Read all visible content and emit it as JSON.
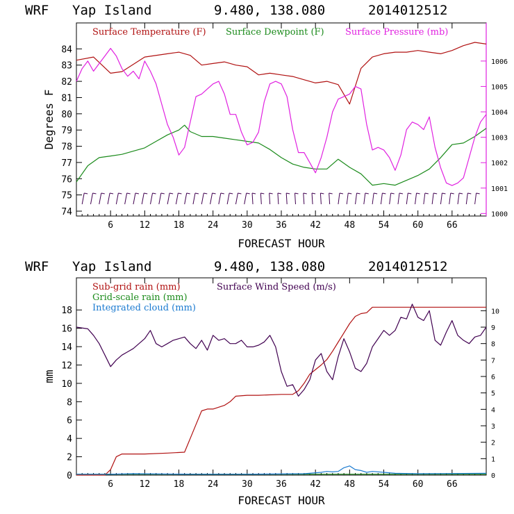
{
  "chart_data": [
    {
      "type": "line",
      "title": {
        "model": "WRF",
        "location": "Yap Island",
        "coords": "9.480, 138.080",
        "init": "2014012512"
      },
      "xlabel": "FORECAST HOUR",
      "ylabel": "Degrees F",
      "xlim": [
        0,
        72
      ],
      "ylim": [
        73.7,
        85.6
      ],
      "y2lim": [
        999.9,
        1007.5
      ],
      "xticks": [
        6,
        12,
        18,
        24,
        30,
        36,
        42,
        48,
        54,
        60,
        66
      ],
      "yticks": [
        74,
        75,
        76,
        77,
        78,
        79,
        80,
        81,
        82,
        83,
        84
      ],
      "y2ticks": [
        1000,
        1001,
        1002,
        1003,
        1004,
        1005,
        1006
      ],
      "series": [
        {
          "name": "Surface Temperature (F)",
          "color": "#b01010",
          "axis": "left",
          "x": [
            0,
            3,
            6,
            8,
            12,
            16,
            18,
            20,
            22,
            24,
            26,
            28,
            30,
            32,
            34,
            36,
            38,
            40,
            42,
            44,
            46,
            48,
            50,
            52,
            54,
            56,
            58,
            60,
            62,
            64,
            66,
            68,
            70,
            72
          ],
          "y": [
            83.3,
            83.5,
            82.5,
            82.6,
            83.5,
            83.7,
            83.8,
            83.6,
            83.0,
            83.1,
            83.2,
            83.0,
            82.9,
            82.4,
            82.5,
            82.4,
            82.3,
            82.1,
            81.9,
            82.0,
            81.8,
            80.6,
            82.8,
            83.5,
            83.7,
            83.8,
            83.8,
            83.9,
            83.8,
            83.7,
            83.9,
            84.2,
            84.4,
            84.3
          ]
        },
        {
          "name": "Surface Dewpoint (F)",
          "color": "#1a8a1a",
          "axis": "left",
          "x": [
            0,
            2,
            4,
            6,
            8,
            10,
            12,
            14,
            16,
            18,
            19,
            20,
            22,
            24,
            26,
            28,
            30,
            32,
            34,
            36,
            38,
            40,
            42,
            44,
            46,
            48,
            50,
            52,
            54,
            56,
            58,
            60,
            62,
            64,
            66,
            68,
            70,
            72
          ],
          "y": [
            75.8,
            76.8,
            77.3,
            77.4,
            77.5,
            77.7,
            77.9,
            78.3,
            78.7,
            79.0,
            79.3,
            78.9,
            78.6,
            78.6,
            78.5,
            78.4,
            78.3,
            78.2,
            77.8,
            77.3,
            76.9,
            76.7,
            76.6,
            76.6,
            77.2,
            76.7,
            76.3,
            75.6,
            75.7,
            75.6,
            75.9,
            76.2,
            76.6,
            77.3,
            78.1,
            78.2,
            78.6,
            79.1
          ]
        },
        {
          "name": "Surface Pressure (mb)",
          "color": "#e020e0",
          "axis": "right",
          "x": [
            0,
            1,
            2,
            3,
            4,
            5,
            6,
            7,
            8,
            9,
            10,
            11,
            12,
            13,
            14,
            15,
            16,
            17,
            18,
            19,
            20,
            21,
            22,
            23,
            24,
            25,
            26,
            27,
            28,
            29,
            30,
            31,
            32,
            33,
            34,
            35,
            36,
            37,
            38,
            39,
            40,
            41,
            42,
            43,
            44,
            45,
            46,
            47,
            48,
            49,
            50,
            51,
            52,
            53,
            54,
            55,
            56,
            57,
            58,
            59,
            60,
            61,
            62,
            63,
            64,
            65,
            66,
            67,
            68,
            69,
            70,
            71,
            72
          ],
          "y": [
            1005.2,
            1005.7,
            1006.0,
            1005.6,
            1005.9,
            1006.2,
            1006.5,
            1006.2,
            1005.7,
            1005.4,
            1005.6,
            1005.3,
            1006.0,
            1005.6,
            1005.1,
            1004.3,
            1003.5,
            1003.0,
            1002.3,
            1002.6,
            1003.6,
            1004.6,
            1004.7,
            1004.9,
            1005.1,
            1005.2,
            1004.7,
            1003.9,
            1003.9,
            1003.2,
            1002.7,
            1002.8,
            1003.2,
            1004.4,
            1005.1,
            1005.2,
            1005.1,
            1004.6,
            1003.3,
            1002.4,
            1002.4,
            1002.0,
            1001.6,
            1002.2,
            1003.0,
            1004.0,
            1004.5,
            1004.6,
            1004.7,
            1005.0,
            1004.9,
            1003.5,
            1002.5,
            1002.6,
            1002.5,
            1002.2,
            1001.7,
            1002.3,
            1003.3,
            1003.6,
            1003.5,
            1003.3,
            1003.8,
            1002.6,
            1001.8,
            1001.2,
            1001.1,
            1001.2,
            1001.4,
            1002.2,
            1003.0,
            1003.6,
            1003.9
          ]
        }
      ]
    },
    {
      "type": "line",
      "title": {
        "model": "WRF",
        "location": "Yap Island",
        "coords": "9.480, 138.080",
        "init": "2014012512"
      },
      "xlabel": "FORECAST HOUR",
      "ylabel": "mm",
      "xlim": [
        0,
        72
      ],
      "ylim": [
        0,
        21.5
      ],
      "y2lim": [
        0,
        12
      ],
      "xticks": [
        6,
        12,
        18,
        24,
        30,
        36,
        42,
        48,
        54,
        60,
        66
      ],
      "yticks": [
        0,
        2,
        4,
        6,
        8,
        10,
        12,
        14,
        16,
        18
      ],
      "y2ticks": [
        0,
        1,
        2,
        3,
        4,
        5,
        6,
        7,
        8,
        9,
        10
      ],
      "series": [
        {
          "name": "Sub-grid rain (mm)",
          "color": "#b01010",
          "axis": "left",
          "x": [
            0,
            5,
            6,
            7,
            8,
            12,
            16,
            19,
            20,
            21,
            22,
            23,
            24,
            26,
            27,
            28,
            30,
            32,
            36,
            38,
            39,
            40,
            41,
            42,
            43,
            44,
            45,
            46,
            47,
            48,
            49,
            50,
            51,
            52,
            53,
            54,
            60,
            66,
            72
          ],
          "y": [
            0,
            0,
            0.6,
            2.0,
            2.3,
            2.3,
            2.4,
            2.5,
            4.0,
            5.5,
            7.0,
            7.2,
            7.2,
            7.6,
            8.0,
            8.6,
            8.7,
            8.7,
            8.8,
            8.8,
            9.2,
            10.0,
            11.0,
            11.5,
            12.0,
            12.6,
            13.5,
            14.5,
            15.5,
            16.5,
            17.3,
            17.6,
            17.7,
            18.3,
            18.3,
            18.3,
            18.3,
            18.3,
            18.3
          ]
        },
        {
          "name": "Surface Wind Speed (m/s)",
          "color": "#400050",
          "axis": "right",
          "x": [
            0,
            2,
            3,
            4,
            5,
            6,
            7,
            8,
            9,
            10,
            11,
            12,
            13,
            14,
            15,
            16,
            17,
            18,
            19,
            20,
            21,
            22,
            23,
            24,
            25,
            26,
            27,
            28,
            29,
            30,
            31,
            32,
            33,
            34,
            35,
            36,
            37,
            38,
            39,
            40,
            41,
            42,
            43,
            44,
            45,
            46,
            47,
            48,
            49,
            50,
            51,
            52,
            53,
            54,
            55,
            56,
            57,
            58,
            59,
            60,
            61,
            62,
            63,
            64,
            65,
            66,
            67,
            68,
            69,
            70,
            71,
            72
          ],
          "y": [
            9.0,
            8.9,
            8.5,
            8.0,
            7.3,
            6.6,
            7.0,
            7.3,
            7.5,
            7.7,
            8.0,
            8.3,
            8.8,
            8.0,
            7.8,
            8.0,
            8.2,
            8.3,
            8.4,
            8.0,
            7.7,
            8.2,
            7.6,
            8.5,
            8.2,
            8.3,
            8.0,
            8.0,
            8.2,
            7.8,
            7.8,
            7.9,
            8.1,
            8.5,
            7.8,
            6.3,
            5.4,
            5.5,
            4.8,
            5.2,
            5.8,
            7.0,
            7.4,
            6.3,
            5.8,
            7.2,
            8.3,
            7.5,
            6.5,
            6.3,
            6.8,
            7.8,
            8.3,
            8.8,
            8.5,
            8.8,
            9.6,
            9.5,
            10.4,
            9.6,
            9.4,
            10.0,
            8.2,
            7.9,
            8.7,
            9.4,
            8.5,
            8.2,
            8.0,
            8.4,
            8.5,
            9.0
          ]
        },
        {
          "name": "Grid-scale rain (mm)",
          "color": "#1a8a1a",
          "axis": "left",
          "x": [
            0,
            72
          ],
          "y": [
            0.1,
            0.1
          ]
        },
        {
          "name": "Integrated cloud (mm)",
          "color": "#1a7ad0",
          "axis": "left",
          "x": [
            0,
            6,
            10,
            20,
            30,
            40,
            43,
            44,
            45,
            46,
            47,
            48,
            49,
            50,
            51,
            52,
            54,
            56,
            60,
            72
          ],
          "y": [
            0.1,
            0.1,
            0.15,
            0.1,
            0.1,
            0.15,
            0.3,
            0.4,
            0.35,
            0.4,
            0.8,
            1.0,
            0.6,
            0.5,
            0.3,
            0.4,
            0.3,
            0.2,
            0.15,
            0.2
          ]
        }
      ]
    }
  ]
}
